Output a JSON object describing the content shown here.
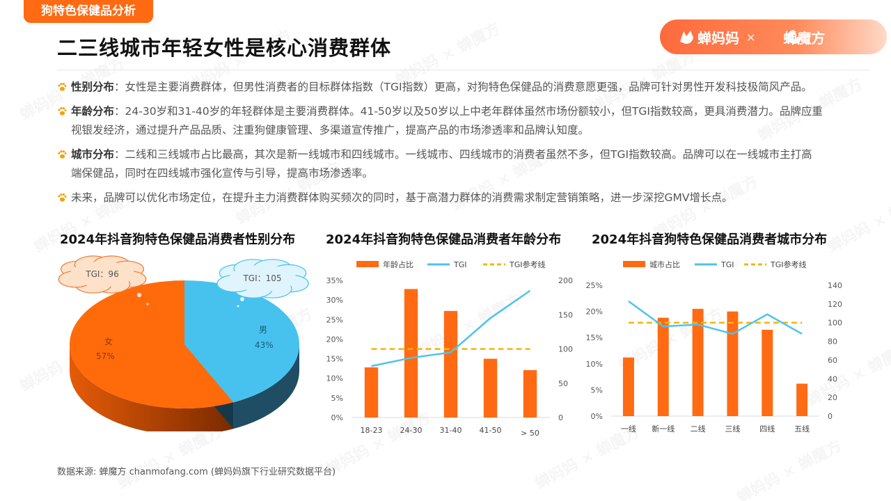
{
  "tag": "狗特色保健品分析",
  "title": "二三线城市年轻女性是核心消费群体",
  "logo": {
    "brand1": "蝉妈妈",
    "separator": "×",
    "brand2": "蝉魔方",
    "brand1_icon": "cicada-fox-icon",
    "brand2_icon": "c-logo-icon"
  },
  "bullets": [
    {
      "label": "性别分布",
      "text": "：女性是主要消费群体，但男性消费者的目标群体指数（TGI指数）更高，对狗特色保健品的消费意愿更强，品牌可针对男性开发科技极简风产品。"
    },
    {
      "label": "年龄分布",
      "text": "：24-30岁和31-40岁的年轻群体是主要消费群体。41-50岁以及50岁以上中老年群体虽然市场份额较小，但TGI指数较高，更具消费潜力。品牌应重视银发经济，通过提升产品品质、注重狗健康管理、多渠道宣传推广，提高产品的市场渗透率和品牌认知度。"
    },
    {
      "label": "城市分布",
      "text": "：二线和三线城市占比最高，其次是新一线城市和四线城市。一线城市、四线城市的消费者虽然不多，但TGI指数较高。品牌可以在一线城市主打高端保健品，同时在四线城市强化宣传与引导，提高市场渗透率。"
    },
    {
      "label": "",
      "text": "未来，品牌可以优化市场定位，在提升主力消费群体购买频次的同时，基于高潜力群体的消费需求制定营销策略，进一步深挖GMV增长点。"
    }
  ],
  "source": "数据来源: 蝉魔方 chanmofang.com (蝉妈妈旗下行业研究数据平台)",
  "watermark_text": "蝉妈妈 × 蝉魔方",
  "colors": {
    "orange": "#ff6a13",
    "blue": "#4cc3ee",
    "yellow": "#f2b50f",
    "pie_orange": "#ff6b0a",
    "pie_blue": "#47c2ef"
  },
  "chart_data": [
    {
      "type": "pie",
      "title": "2024年抖音狗特色保健品消费者性别分布",
      "slices": [
        {
          "label": "女",
          "value": 57,
          "pct_label": "57%",
          "tgi_label": "TGI：96"
        },
        {
          "label": "男",
          "value": 43,
          "pct_label": "43%",
          "tgi_label": "TGI：105"
        }
      ]
    },
    {
      "type": "bar",
      "title": "2024年抖音狗特色保健品消费者年龄分布",
      "legend": [
        "年龄占比",
        "TGI",
        "TGI参考线"
      ],
      "legend_position": "top",
      "categories": [
        "18-23",
        "24-30",
        "31-40",
        "41-50",
        "> 50"
      ],
      "series": [
        {
          "name": "年龄占比",
          "type": "bar",
          "axis": "left",
          "values": [
            0.128,
            0.328,
            0.272,
            0.15,
            0.121
          ]
        },
        {
          "name": "TGI",
          "type": "line",
          "axis": "right",
          "values": [
            75,
            87,
            95,
            145,
            185
          ]
        },
        {
          "name": "TGI参考线",
          "type": "dashed",
          "axis": "right",
          "values": [
            100,
            100,
            100,
            100,
            100
          ]
        }
      ],
      "y_left": {
        "ticks": [
          "0%",
          "5%",
          "10%",
          "15%",
          "20%",
          "25%",
          "30%",
          "35%"
        ],
        "range": [
          0,
          0.35
        ]
      },
      "y_right": {
        "ticks": [
          "0",
          "50",
          "100",
          "150",
          "200"
        ],
        "range": [
          0,
          200
        ]
      }
    },
    {
      "type": "bar",
      "title": "2024年抖音狗特色保健品消费者城市分布",
      "legend": [
        "城市占比",
        "TGI",
        "TGI参考线"
      ],
      "legend_position": "top",
      "categories": [
        "一线",
        "新一线",
        "二线",
        "三线",
        "四线",
        "五线"
      ],
      "series": [
        {
          "name": "城市占比",
          "type": "bar",
          "axis": "left",
          "values": [
            0.112,
            0.188,
            0.205,
            0.2,
            0.165,
            0.062
          ]
        },
        {
          "name": "TGI",
          "type": "line",
          "axis": "right",
          "values": [
            123,
            96,
            98,
            88,
            109,
            88
          ]
        },
        {
          "name": "TGI参考线",
          "type": "dashed",
          "axis": "right",
          "values": [
            100,
            100,
            100,
            100,
            100,
            100
          ]
        }
      ],
      "y_left": {
        "ticks": [
          "0%",
          "5%",
          "10%",
          "15%",
          "20%",
          "25%"
        ],
        "range": [
          0,
          0.25
        ]
      },
      "y_right": {
        "ticks": [
          "0",
          "20",
          "40",
          "60",
          "80",
          "100",
          "120",
          "140"
        ],
        "range": [
          0,
          140
        ]
      }
    }
  ]
}
